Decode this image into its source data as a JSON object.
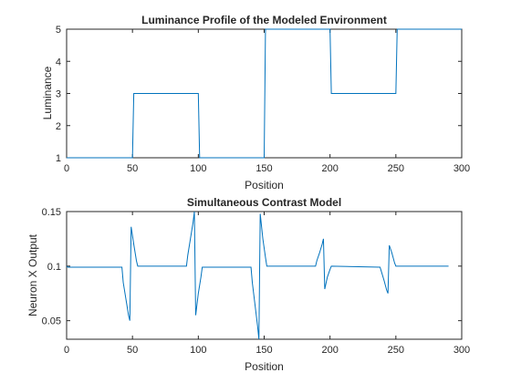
{
  "chart_data": [
    {
      "type": "line",
      "title": "Luminance Profile of the Modeled Environment",
      "xlabel": "Position",
      "ylabel": "Luminance",
      "xlim": [
        0,
        300
      ],
      "ylim": [
        1,
        5
      ],
      "xticks": [
        "0",
        "50",
        "100",
        "150",
        "200",
        "250",
        "300"
      ],
      "yticks": [
        "1",
        "2",
        "3",
        "4",
        "5"
      ],
      "grid": false,
      "color": "#0072BD",
      "series": [
        {
          "x": [
            0,
            50,
            51,
            100,
            101,
            150,
            151,
            200,
            201,
            250,
            251,
            300
          ],
          "values": [
            1,
            1,
            3,
            3,
            1,
            1,
            5,
            5,
            3,
            3,
            5,
            5
          ]
        }
      ]
    },
    {
      "type": "line",
      "title": "Simultaneous Contrast Model",
      "xlabel": "Position",
      "ylabel": "Neuron X Output",
      "xlim": [
        0,
        300
      ],
      "ylim": [
        0.033,
        0.15
      ],
      "xticks": [
        "0",
        "50",
        "100",
        "150",
        "200",
        "250",
        "300"
      ],
      "yticks": [
        "0.05",
        "0.1",
        "0.15"
      ],
      "grid": false,
      "color": "#0072BD",
      "series": [
        {
          "x": [
            0,
            1,
            42,
            43,
            45,
            47,
            48,
            49,
            51,
            53,
            54,
            91,
            92,
            94,
            96,
            97,
            98,
            100,
            102,
            103,
            140,
            141,
            143,
            145,
            146,
            147,
            149,
            151,
            152,
            189,
            190,
            192,
            194,
            195,
            196,
            198,
            200,
            201,
            238,
            239,
            241,
            243,
            244,
            245,
            247,
            249,
            250,
            290
          ],
          "values": [
            0.1,
            0.099,
            0.099,
            0.085,
            0.07,
            0.055,
            0.05,
            0.136,
            0.12,
            0.105,
            0.1,
            0.1,
            0.11,
            0.125,
            0.14,
            0.15,
            0.055,
            0.075,
            0.09,
            0.099,
            0.099,
            0.085,
            0.065,
            0.045,
            0.033,
            0.148,
            0.125,
            0.108,
            0.1,
            0.1,
            0.105,
            0.112,
            0.12,
            0.125,
            0.079,
            0.09,
            0.097,
            0.1,
            0.099,
            0.095,
            0.087,
            0.078,
            0.075,
            0.119,
            0.112,
            0.103,
            0.1,
            0.1
          ]
        }
      ]
    }
  ]
}
